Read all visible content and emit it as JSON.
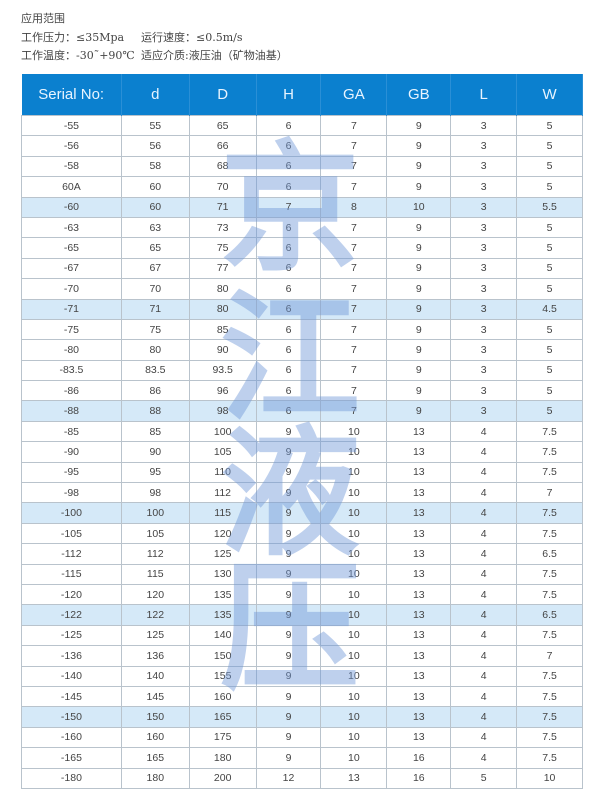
{
  "specs": {
    "title": "应用范围",
    "pressure": "工作压力：≤35Mpa",
    "speed": "运行速度：≤0.5m/s",
    "temperature": "工作温度：-30˜+90℃",
    "medium": "适应介质:液压油（矿物油基）"
  },
  "table": {
    "headers": [
      "Serial No:",
      "d",
      "D",
      "H",
      "GA",
      "GB",
      "L",
      "W"
    ],
    "rows": [
      [
        "-55",
        "55",
        "65",
        "6",
        "7",
        "9",
        "3",
        "5"
      ],
      [
        "-56",
        "56",
        "66",
        "6",
        "7",
        "9",
        "3",
        "5"
      ],
      [
        "-58",
        "58",
        "68",
        "6",
        "7",
        "9",
        "3",
        "5"
      ],
      [
        "60A",
        "60",
        "70",
        "6",
        "7",
        "9",
        "3",
        "5"
      ],
      [
        "-60",
        "60",
        "71",
        "7",
        "8",
        "10",
        "3",
        "5.5"
      ],
      [
        "-63",
        "63",
        "73",
        "6",
        "7",
        "9",
        "3",
        "5"
      ],
      [
        "-65",
        "65",
        "75",
        "6",
        "7",
        "9",
        "3",
        "5"
      ],
      [
        "-67",
        "67",
        "77",
        "6",
        "7",
        "9",
        "3",
        "5"
      ],
      [
        "-70",
        "70",
        "80",
        "6",
        "7",
        "9",
        "3",
        "5"
      ],
      [
        "-71",
        "71",
        "80",
        "6",
        "7",
        "9",
        "3",
        "4.5"
      ],
      [
        "-75",
        "75",
        "85",
        "6",
        "7",
        "9",
        "3",
        "5"
      ],
      [
        "-80",
        "80",
        "90",
        "6",
        "7",
        "9",
        "3",
        "5"
      ],
      [
        "-83.5",
        "83.5",
        "93.5",
        "6",
        "7",
        "9",
        "3",
        "5"
      ],
      [
        "-86",
        "86",
        "96",
        "6",
        "7",
        "9",
        "3",
        "5"
      ],
      [
        "-88",
        "88",
        "98",
        "6",
        "7",
        "9",
        "3",
        "5"
      ],
      [
        "-85",
        "85",
        "100",
        "9",
        "10",
        "13",
        "4",
        "7.5"
      ],
      [
        "-90",
        "90",
        "105",
        "9",
        "10",
        "13",
        "4",
        "7.5"
      ],
      [
        "-95",
        "95",
        "110",
        "9",
        "10",
        "13",
        "4",
        "7.5"
      ],
      [
        "-98",
        "98",
        "112",
        "9",
        "10",
        "13",
        "4",
        "7"
      ],
      [
        "-100",
        "100",
        "115",
        "9",
        "10",
        "13",
        "4",
        "7.5"
      ],
      [
        "-105",
        "105",
        "120",
        "9",
        "10",
        "13",
        "4",
        "7.5"
      ],
      [
        "-112",
        "112",
        "125",
        "9",
        "10",
        "13",
        "4",
        "6.5"
      ],
      [
        "-115",
        "115",
        "130",
        "9",
        "10",
        "13",
        "4",
        "7.5"
      ],
      [
        "-120",
        "120",
        "135",
        "9",
        "10",
        "13",
        "4",
        "7.5"
      ],
      [
        "-122",
        "122",
        "135",
        "9",
        "10",
        "13",
        "4",
        "6.5"
      ],
      [
        "-125",
        "125",
        "140",
        "9",
        "10",
        "13",
        "4",
        "7.5"
      ],
      [
        "-136",
        "136",
        "150",
        "9",
        "10",
        "13",
        "4",
        "7"
      ],
      [
        "-140",
        "140",
        "155",
        "9",
        "10",
        "13",
        "4",
        "7.5"
      ],
      [
        "-145",
        "145",
        "160",
        "9",
        "10",
        "13",
        "4",
        "7.5"
      ],
      [
        "-150",
        "150",
        "165",
        "9",
        "10",
        "13",
        "4",
        "7.5"
      ],
      [
        "-160",
        "160",
        "175",
        "9",
        "10",
        "13",
        "4",
        "7.5"
      ],
      [
        "-165",
        "165",
        "180",
        "9",
        "10",
        "16",
        "4",
        "7.5"
      ],
      [
        "-180",
        "180",
        "200",
        "12",
        "13",
        "16",
        "5",
        "10"
      ]
    ],
    "highlighted_rows": [
      "-60",
      "-71",
      "-88",
      "-100",
      "-122",
      "-150"
    ]
  },
  "colors": {
    "header": "#0b80cf",
    "highlight": "#d5e9f8",
    "watermark": "#6e96d7"
  },
  "watermark": [
    "京",
    "江",
    "液",
    "压"
  ]
}
